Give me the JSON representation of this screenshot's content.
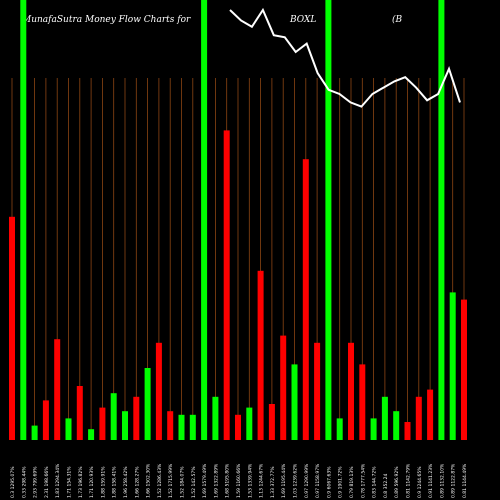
{
  "chart_data": {
    "type": "bar",
    "title_left": "MunafaSutra  Money Flow  Charts for",
    "title_symbol": "BOXL",
    "title_right": "(B",
    "ylim": [
      0,
      100
    ],
    "bars": [
      {
        "label": "0.3 1295.07%",
        "value": 62,
        "color": "red"
      },
      {
        "label": "0.33 298.44%",
        "value": 100,
        "color": "green",
        "full": true
      },
      {
        "label": "2.93 799.69%",
        "value": 4,
        "color": "green"
      },
      {
        "label": "2.31 198.66%",
        "value": 11,
        "color": "red"
      },
      {
        "label": "1.83 1294.34%",
        "value": 28,
        "color": "red"
      },
      {
        "label": "1.71 154.31%",
        "value": 6,
        "color": "green"
      },
      {
        "label": "1.73 196.82%",
        "value": 15,
        "color": "red"
      },
      {
        "label": "1.71 120.93%",
        "value": 3,
        "color": "green"
      },
      {
        "label": "1.88 159.91%",
        "value": 9,
        "color": "red"
      },
      {
        "label": "1.88 158.41%",
        "value": 13,
        "color": "green"
      },
      {
        "label": "1.96 258.42%",
        "value": 8,
        "color": "green"
      },
      {
        "label": "1.66 128.27%",
        "value": 12,
        "color": "red"
      },
      {
        "label": "1.66 1502.30%",
        "value": 20,
        "color": "green"
      },
      {
        "label": "1.52 1286.43%",
        "value": 27,
        "color": "red"
      },
      {
        "label": "1.52 1715.99%",
        "value": 8,
        "color": "red"
      },
      {
        "label": "1.52 184.07%",
        "value": 7,
        "color": "green"
      },
      {
        "label": "1.52 142.57%",
        "value": 7,
        "color": "green"
      },
      {
        "label": "1.69 1579.49%",
        "value": 100,
        "color": "green",
        "full": true
      },
      {
        "label": "1.69 1322.89%",
        "value": 12,
        "color": "green"
      },
      {
        "label": "1.68 5195.80%",
        "value": 86,
        "color": "red"
      },
      {
        "label": "1.59 1160.66%",
        "value": 7,
        "color": "red"
      },
      {
        "label": "1.53 1339.94%",
        "value": 9,
        "color": "green"
      },
      {
        "label": "1.13 1244.67%",
        "value": 47,
        "color": "red"
      },
      {
        "label": "1.33 372.77%",
        "value": 10,
        "color": "red"
      },
      {
        "label": "1.69 1195.44%",
        "value": 29,
        "color": "red"
      },
      {
        "label": "1.03 1239.62%",
        "value": 21,
        "color": "green"
      },
      {
        "label": "0.97 1290.99%",
        "value": 78,
        "color": "red"
      },
      {
        "label": "0.97 1158.97%",
        "value": 27,
        "color": "red"
      },
      {
        "label": "0.9 6067.63%",
        "value": 100,
        "color": "green",
        "full": true
      },
      {
        "label": "0.9 1901.72%",
        "value": 6,
        "color": "green"
      },
      {
        "label": "0.79 819.13%",
        "value": 27,
        "color": "red"
      },
      {
        "label": "0.78 1777.54%",
        "value": 21,
        "color": "red"
      },
      {
        "label": "0.83 144.72%",
        "value": 6,
        "color": "green"
      },
      {
        "label": "0.8 352.24",
        "value": 12,
        "color": "green"
      },
      {
        "label": "0.89 596.92%",
        "value": 8,
        "color": "green"
      },
      {
        "label": "0.81 1142.79%",
        "value": 5,
        "color": "red"
      },
      {
        "label": "0.9 1244.65%",
        "value": 12,
        "color": "red"
      },
      {
        "label": "0.91 1141.23%",
        "value": 14,
        "color": "red"
      },
      {
        "label": "0.89 1132.10%",
        "value": 100,
        "color": "green",
        "full": true
      },
      {
        "label": "0.89 1122.87%",
        "value": 41,
        "color": "green"
      },
      {
        "label": "0.81 1144.49%",
        "value": 39,
        "color": "red"
      }
    ],
    "price_line": [
      100,
      95,
      92,
      100,
      88,
      87,
      80,
      84,
      70,
      62,
      60,
      56,
      54,
      60,
      63,
      66,
      68,
      63,
      57,
      60,
      72,
      56
    ]
  },
  "colors": {
    "background": "#000000",
    "grid": "#8B4513",
    "red_bar": "#ff0000",
    "green_bar": "#00ff00",
    "price_line": "#ffffff"
  }
}
